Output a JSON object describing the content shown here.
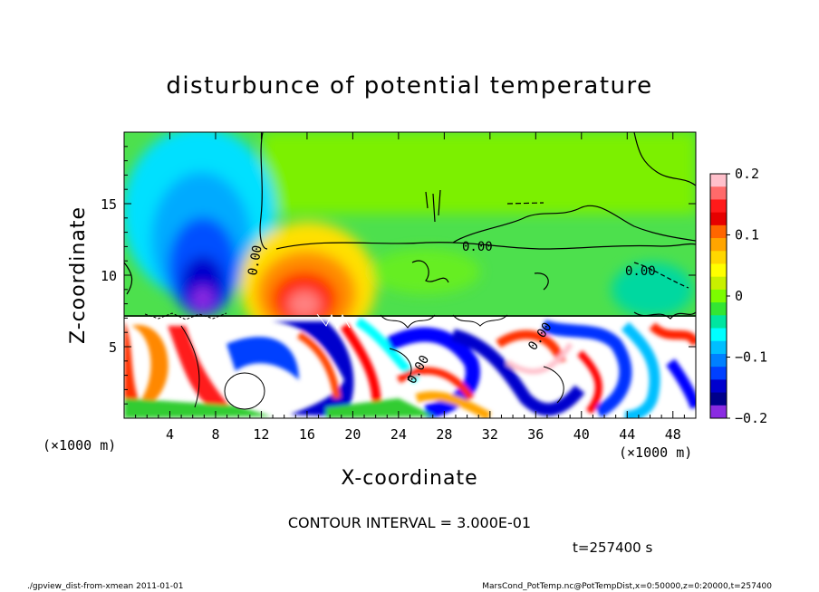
{
  "chart_data": {
    "type": "heatmap",
    "title": "disturbunce of potential temperature",
    "xlabel": "X-coordinate",
    "ylabel": "Z-coordinate",
    "x_unit": "(×1000 m)",
    "z_unit": "(×1000 m)",
    "xlim": [
      0,
      50
    ],
    "zlim": [
      0,
      20
    ],
    "x_ticks": [
      "4",
      "8",
      "12",
      "16",
      "20",
      "24",
      "28",
      "32",
      "36",
      "40",
      "44",
      "48"
    ],
    "z_ticks": [
      "5",
      "10",
      "15"
    ],
    "colorbar": {
      "range": [
        -0.2,
        0.2
      ],
      "tick_labels": [
        "0.2",
        "0.1",
        "0",
        "−0.1",
        "−0.2"
      ],
      "colors": [
        "#ffc0cb",
        "#ff6a6a",
        "#ff1a1a",
        "#e60000",
        "#ff6600",
        "#ffa500",
        "#ffd700",
        "#ffff00",
        "#c8f000",
        "#7cfc00",
        "#33e633",
        "#00e6a0",
        "#00ffff",
        "#00bfff",
        "#0080ff",
        "#0040ff",
        "#0000cd",
        "#00008b",
        "#8a2be2"
      ]
    },
    "contour_labels": [
      "0.00",
      "0.00",
      "0.00",
      "0.00",
      "0.00"
    ],
    "contour_interval": "CONTOUR INTERVAL = 3.000E-01",
    "time": "t=257400 s",
    "features": [
      {
        "name": "cold-anomaly",
        "x": 7,
        "z": 10,
        "value": -0.18
      },
      {
        "name": "warm-anomaly",
        "x": 16,
        "z": 9,
        "value": 0.17
      },
      {
        "name": "cloud-turbulence-layer",
        "x_range": [
          0,
          50
        ],
        "z_range": [
          0,
          7.2
        ]
      }
    ]
  },
  "footer": {
    "left": "./gpview_dist-from-xmean  2011-01-01",
    "right": "MarsCond_PotTemp.nc@PotTempDist,x=0:50000,z=0:20000,t=257400"
  }
}
